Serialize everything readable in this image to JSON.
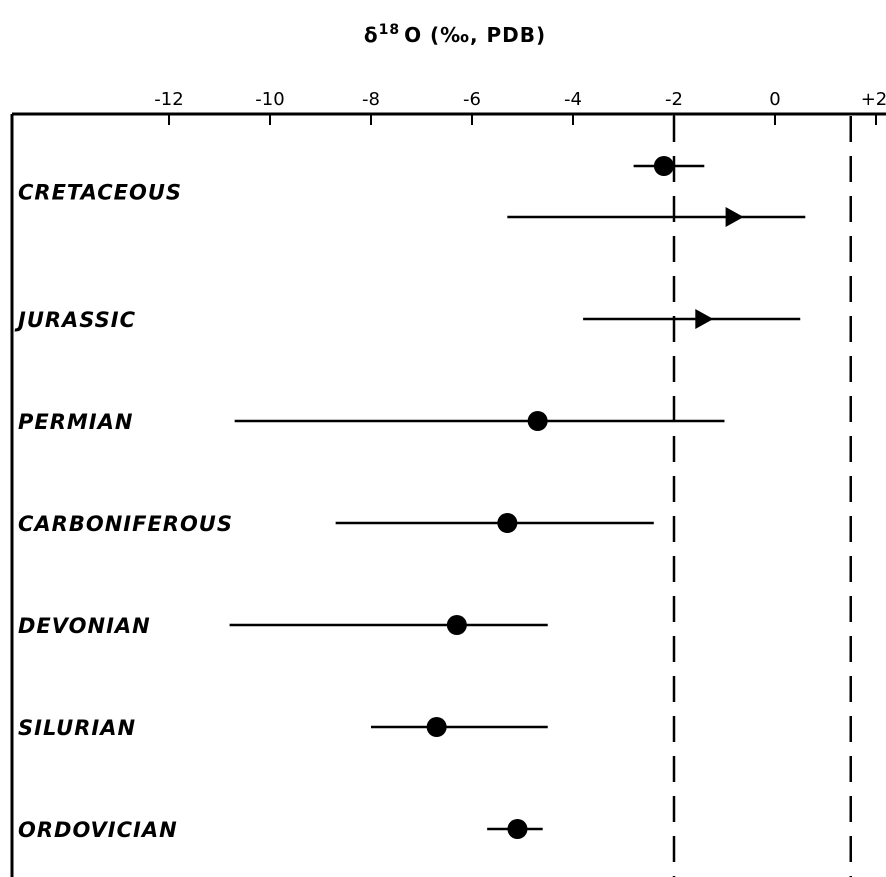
{
  "chart_data": {
    "type": "scatter",
    "title": "",
    "xlabel_main": "δ",
    "xlabel_sup": "18",
    "xlabel_rest": "O (‰, PDB)",
    "xlabel": "δ18O (‰, PDB)",
    "ylabel": "",
    "xlim": [
      -16,
      2
    ],
    "x_ticks": [
      -12,
      -10,
      -8,
      -6,
      -4,
      -2,
      0,
      2
    ],
    "x_tick_labels": [
      "-12",
      "-10",
      "-8",
      "-6",
      "-4",
      "-2",
      "0",
      "+2"
    ],
    "axis_position": "top",
    "reference_lines": [
      -2.0,
      1.5
    ],
    "reference_line_style": "dashed",
    "categories": [
      "CRETACEOUS",
      "JURASSIC",
      "PERMIAN",
      "CARBONIFEROUS",
      "DEVONIAN",
      "SILURIAN",
      "ORDOVICIAN"
    ],
    "series": [
      {
        "points": [
          {
            "period": "CRETACEOUS",
            "row": 0,
            "marker": "circle",
            "mean": -2.2,
            "min": -2.8,
            "max": -1.4
          },
          {
            "period": "CRETACEOUS",
            "row": 0.5,
            "marker": "triangle",
            "mean": -0.8,
            "min": -5.3,
            "max": 0.6
          },
          {
            "period": "JURASSIC",
            "row": 1.5,
            "marker": "triangle",
            "mean": -1.4,
            "min": -3.8,
            "max": 0.5
          },
          {
            "period": "PERMIAN",
            "row": 2.5,
            "marker": "circle",
            "mean": -4.7,
            "min": -10.7,
            "max": -1.0
          },
          {
            "period": "CARBONIFEROUS",
            "row": 3.5,
            "marker": "circle",
            "mean": -5.3,
            "min": -8.7,
            "max": -2.4
          },
          {
            "period": "DEVONIAN",
            "row": 4.5,
            "marker": "circle",
            "mean": -6.3,
            "min": -10.8,
            "max": -4.5
          },
          {
            "period": "SILURIAN",
            "row": 5.5,
            "marker": "circle",
            "mean": -6.7,
            "min": -8.0,
            "max": -4.5
          },
          {
            "period": "ORDOVICIAN",
            "row": 6.5,
            "marker": "circle",
            "mean": -5.1,
            "min": -5.7,
            "max": -4.6
          }
        ]
      }
    ],
    "grid": false,
    "colors": {
      "ink": "#000000",
      "background": "#ffffff"
    }
  }
}
